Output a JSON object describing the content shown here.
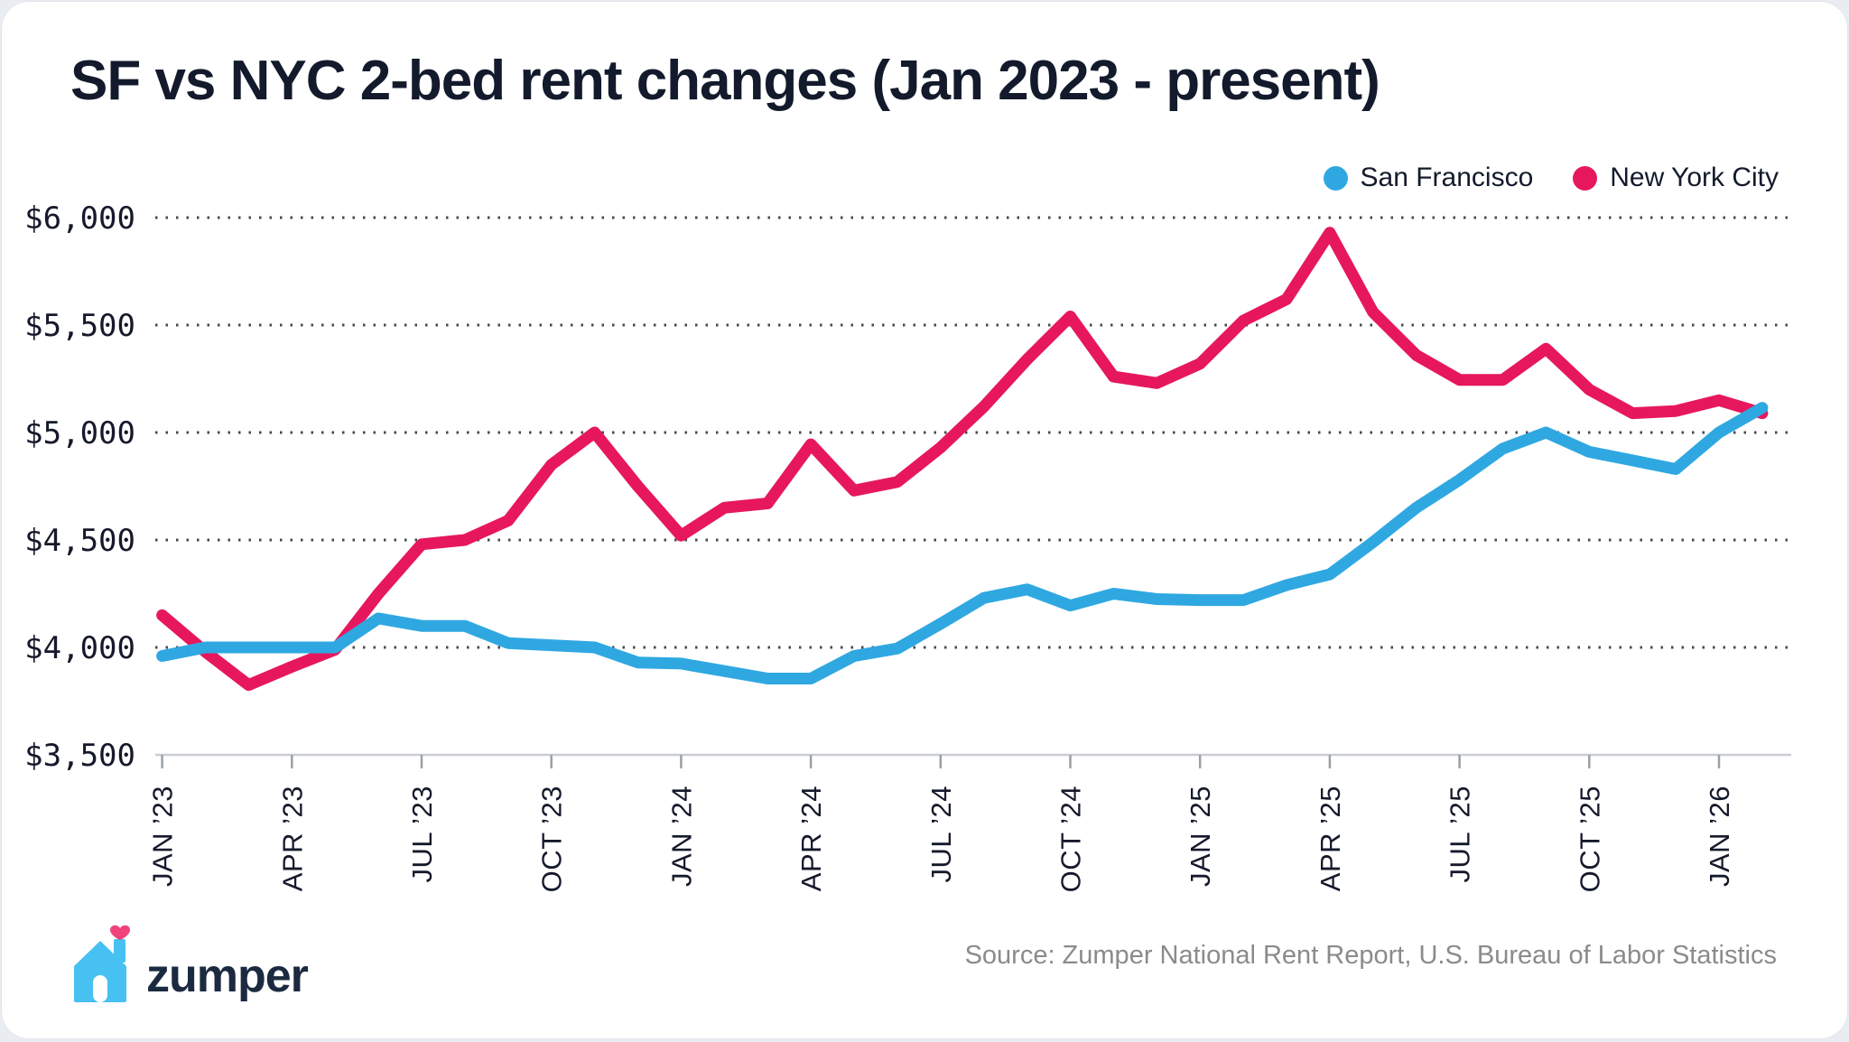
{
  "title": "SF vs NYC 2-bed rent changes (Jan 2023 - present)",
  "footer": {
    "logo_text": "zumper",
    "source": "Source: Zumper National Rent Report, U.S. Bureau of Labor Statistics"
  },
  "colors": {
    "sf_blue": "#2FA8E1",
    "nyc_pink": "#E7175E",
    "ink_navy": "#15192b",
    "grid_dot": "#46494d",
    "axis_gray": "#c9cdd3",
    "source_gray": "#8b8b8b",
    "logo_house_blue": "#47C1F2",
    "logo_heart_pink": "#F0437B",
    "logo_navy": "#1B2A40"
  },
  "chart_data": {
    "type": "line",
    "title": "SF vs NYC 2-bed rent changes (Jan 2023 - present)",
    "xlabel": "",
    "ylabel": "",
    "ylim": [
      3500,
      6000
    ],
    "grid": "dotted horizontal gridlines, solid bottom axis",
    "legend_position": "top-right",
    "x_unit": "month",
    "x": [
      "2023-01",
      "2023-02",
      "2023-03",
      "2023-04",
      "2023-05",
      "2023-06",
      "2023-07",
      "2023-08",
      "2023-09",
      "2023-10",
      "2023-11",
      "2023-12",
      "2024-01",
      "2024-02",
      "2024-03",
      "2024-04",
      "2024-05",
      "2024-06",
      "2024-07",
      "2024-08",
      "2024-09",
      "2024-10",
      "2024-11",
      "2024-12",
      "2025-01",
      "2025-02",
      "2025-03",
      "2025-04",
      "2025-05",
      "2025-06",
      "2025-07",
      "2025-08",
      "2025-09",
      "2025-10",
      "2025-11",
      "2025-12",
      "2026-01",
      "2026-02"
    ],
    "x_tick_every_months": 3,
    "x_tick_labels": [
      "JAN ’23",
      "APR ’23",
      "JUL ’23",
      "OCT ’23",
      "JAN ’24",
      "APR ’24",
      "JUL ’24",
      "OCT ’24",
      "JAN ’25",
      "APR ’25",
      "JUL ’25",
      "OCT ’25",
      "JAN ’26"
    ],
    "y_ticks": [
      3500,
      4000,
      4500,
      5000,
      5500,
      6000
    ],
    "y_tick_labels": [
      "$3,500",
      "$4,000",
      "$4,500",
      "$5,000",
      "$5,500",
      "$6,000"
    ],
    "series": [
      {
        "name": "San Francisco",
        "color": "#2FA8E1",
        "values": [
          3960,
          4000,
          4000,
          4000,
          4000,
          4135,
          4100,
          4100,
          4020,
          4010,
          4000,
          3930,
          3925,
          3890,
          3855,
          3855,
          3960,
          3995,
          4110,
          4230,
          4270,
          4195,
          4250,
          4225,
          4220,
          4220,
          4290,
          4340,
          4490,
          4650,
          4780,
          4925,
          5000,
          4910,
          4870,
          4830,
          5000,
          5115
        ]
      },
      {
        "name": "New York City",
        "color": "#E7175E",
        "values": [
          4150,
          3980,
          3825,
          3910,
          3990,
          4250,
          4480,
          4500,
          4590,
          4850,
          5000,
          4750,
          4520,
          4650,
          4670,
          4945,
          4730,
          4770,
          4930,
          5120,
          5340,
          5540,
          5260,
          5230,
          5320,
          5520,
          5620,
          5930,
          5560,
          5360,
          5245,
          5245,
          5390,
          5200,
          5090,
          5100,
          5150,
          5090
        ]
      }
    ]
  }
}
